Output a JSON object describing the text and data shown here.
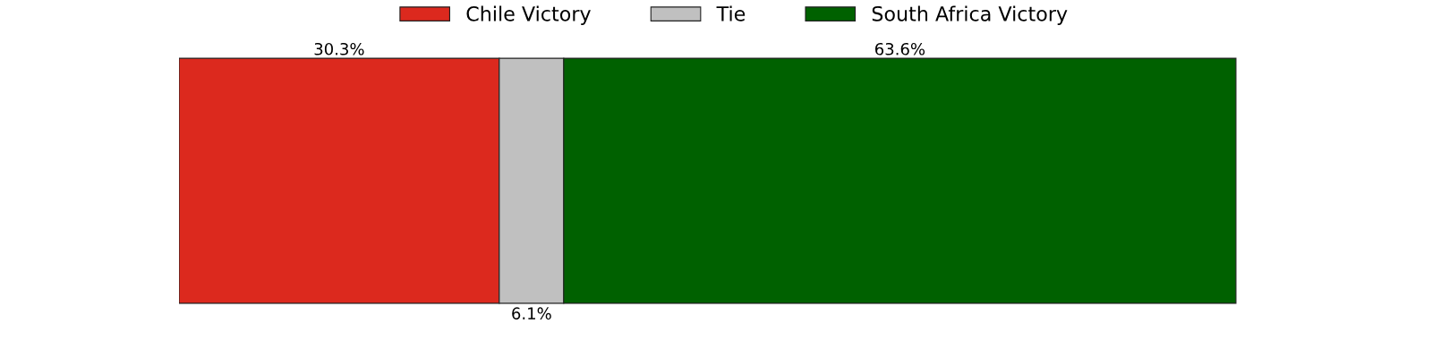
{
  "chart_data": {
    "type": "bar",
    "orientation": "horizontal",
    "stacked": true,
    "categories": [
      null
    ],
    "legend": "top",
    "series": [
      {
        "name": "Chile Victory",
        "color": "#dc291e",
        "values": [
          30.3
        ],
        "value_labels": [
          "30.3%"
        ]
      },
      {
        "name": "Tie",
        "color": "#c0c0c0",
        "values": [
          6.1
        ],
        "value_labels": [
          "6.1%"
        ]
      },
      {
        "name": "South Africa Victory",
        "color": "#006100",
        "values": [
          63.6
        ],
        "value_labels": [
          "63.6%"
        ]
      }
    ]
  }
}
